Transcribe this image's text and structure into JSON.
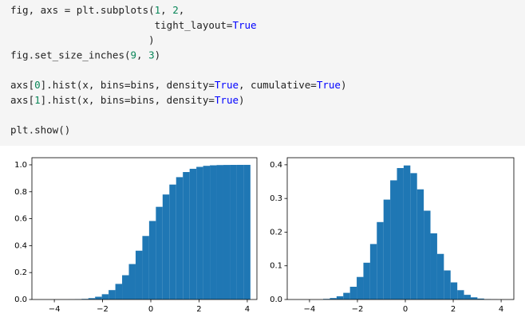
{
  "code": [
    [
      "fig, axs = plt.subplots(1, 2,",
      "                        tight_layout=True",
      "                       )",
      "fig.set_size_inches(9, 3)"
    ],
    [
      "axs[0].hist(x, bins=bins, density=True, cumulative=True)",
      "axs[1].hist(x, bins=bins, density=True)"
    ],
    [
      "plt.show()"
    ]
  ],
  "chart_data": [
    {
      "type": "histogram",
      "color": "#1f77b4",
      "bins": [
        -3.43,
        -3.15,
        -2.87,
        -2.59,
        -2.31,
        -2.03,
        -1.75,
        -1.47,
        -1.19,
        -0.91,
        -0.63,
        -0.35,
        -0.07,
        0.21,
        0.49,
        0.77,
        1.05,
        1.33,
        1.61,
        1.89,
        2.17,
        2.45,
        2.73,
        3.01,
        3.29,
        3.57,
        3.85,
        4.13
      ],
      "values": [
        0.0005,
        0.0017,
        0.0044,
        0.0099,
        0.0205,
        0.0392,
        0.0698,
        0.1159,
        0.1803,
        0.2633,
        0.3624,
        0.4717,
        0.5831,
        0.6882,
        0.7798,
        0.8536,
        0.9086,
        0.9465,
        0.9707,
        0.9849,
        0.9927,
        0.9966,
        0.9985,
        0.9993,
        0.9997,
        0.9999,
        1.0
      ],
      "xlim": [
        -4.93,
        4.4
      ],
      "ylim": [
        0,
        1.053
      ],
      "xticks": [
        {
          "value": -4,
          "label": "−4"
        },
        {
          "value": -2,
          "label": "−2"
        },
        0,
        2,
        4
      ],
      "yticks": [
        {
          "value": 0,
          "label": "0.0"
        },
        {
          "value": 0.2,
          "label": "0.2"
        },
        {
          "value": 0.4,
          "label": "0.4"
        },
        {
          "value": 0.6,
          "label": "0.6"
        },
        {
          "value": 0.8,
          "label": "0.8"
        },
        {
          "value": 1.0,
          "label": "1.0"
        }
      ]
    },
    {
      "type": "histogram",
      "color": "#1f77b4",
      "bins": [
        -3.43,
        -3.15,
        -2.87,
        -2.59,
        -2.31,
        -2.03,
        -1.75,
        -1.47,
        -1.19,
        -0.91,
        -0.63,
        -0.35,
        -0.07,
        0.21,
        0.49,
        0.77,
        1.05,
        1.33,
        1.61,
        1.89,
        2.17,
        2.45,
        2.73,
        3.01,
        3.29,
        3.57,
        3.85,
        4.13
      ],
      "values": [
        0.0018,
        0.0043,
        0.0096,
        0.0198,
        0.0378,
        0.0669,
        0.1092,
        0.1647,
        0.2299,
        0.2966,
        0.3538,
        0.3903,
        0.398,
        0.3752,
        0.3271,
        0.2637,
        0.1965,
        0.1354,
        0.0863,
        0.0508,
        0.0277,
        0.0139,
        0.0065,
        0.0028,
        0.0011,
        0.0004,
        0.0001
      ],
      "xlim": [
        -4.93,
        4.53
      ],
      "ylim": [
        0,
        0.421
      ],
      "xticks": [
        {
          "value": -4,
          "label": "−4"
        },
        {
          "value": -2,
          "label": "−2"
        },
        0,
        2,
        4
      ],
      "yticks": [
        {
          "value": 0,
          "label": "0.0"
        },
        {
          "value": 0.1,
          "label": "0.1"
        },
        {
          "value": 0.2,
          "label": "0.2"
        },
        {
          "value": 0.3,
          "label": "0.3"
        },
        {
          "value": 0.4,
          "label": "0.4"
        }
      ]
    }
  ]
}
